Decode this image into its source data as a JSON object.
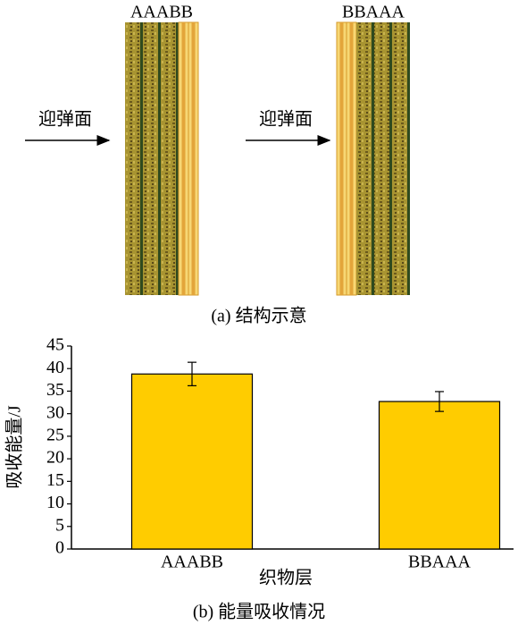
{
  "diagram": {
    "panels": [
      {
        "label": "AAABB",
        "side_label": "迎弹面"
      },
      {
        "label": "BBAAA",
        "side_label": "迎弹面"
      }
    ],
    "caption": "(a) 结构示意"
  },
  "chart_data": {
    "type": "bar",
    "y_label": "吸收能量/J",
    "x_label": "织物层",
    "caption": "(b) 能量吸收情况",
    "categories": [
      "AAABB",
      "BBAAA"
    ],
    "values": [
      38.8,
      32.7
    ],
    "errors": [
      2.6,
      2.2
    ],
    "color": "#ffcc00",
    "ylim": [
      0,
      45
    ],
    "yticks": [
      0,
      5,
      10,
      15,
      20,
      25,
      30,
      35,
      40,
      45
    ]
  }
}
